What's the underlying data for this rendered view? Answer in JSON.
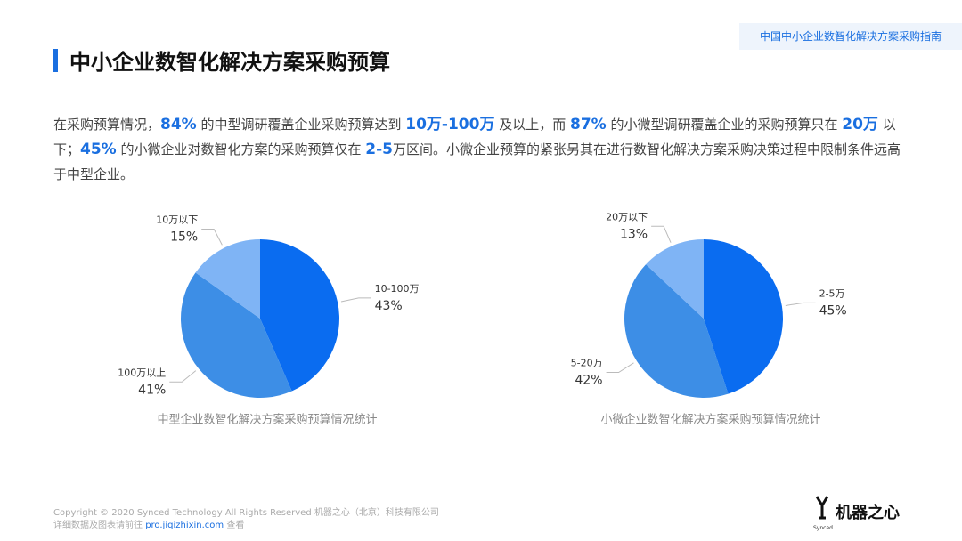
{
  "header": {
    "tag": "中国中小企业数智化解决方案采购指南",
    "title": "中小企业数智化解决方案采购预算"
  },
  "paragraph": [
    {
      "text": "在采购预算情况，"
    },
    {
      "text": "84%",
      "highlight": true
    },
    {
      "text": " 的中型调研覆盖企业采购预算达到 "
    },
    {
      "text": "10万-100万",
      "highlight": true
    },
    {
      "text": " 及以上，而 "
    },
    {
      "text": "87%",
      "highlight": true
    },
    {
      "text": " 的小微型调研覆盖企业的采购预算只在 "
    },
    {
      "text": "20万",
      "highlight": true
    },
    {
      "text": " 以下；"
    },
    {
      "text": "45%",
      "highlight": true
    },
    {
      "text": " 的小微企业对数智化方案的采购预算仅在 "
    },
    {
      "text": "2-5",
      "highlight": true
    },
    {
      "text": "万区间。小微企业预算的紧张另其在进行数智化解决方案采购决策过程中限制条件远高于中型企业。"
    }
  ],
  "chart_data": [
    {
      "type": "pie",
      "title": "中型企业数智化解决方案采购预算情况统计",
      "categories": [
        "10-100万",
        "100万以上",
        "10万以下"
      ],
      "values": [
        43,
        41,
        15
      ],
      "value_labels": [
        "43%",
        "41%",
        "15%"
      ],
      "colors": [
        "#0a6cf0",
        "#3d8ee6",
        "#7fb4f5"
      ]
    },
    {
      "type": "pie",
      "title": "小微企业数智化解决方案采购预算情况统计",
      "categories": [
        "2-5万",
        "5-20万",
        "20万以下"
      ],
      "values": [
        45,
        42,
        13
      ],
      "value_labels": [
        "45%",
        "42%",
        "13%"
      ],
      "colors": [
        "#0a6cf0",
        "#3d8ee6",
        "#7fb4f5"
      ]
    }
  ],
  "footer": {
    "copyright": "Copyright © 2020 Synced Technology All Rights Reserved  机器之心（北京）科技有限公司",
    "link_prefix": "详细数据及图表请前往",
    "link": "pro.jiqizhixin.com",
    "link_suffix": "查看",
    "logo": "机器之心",
    "logo_small": "Synced"
  }
}
